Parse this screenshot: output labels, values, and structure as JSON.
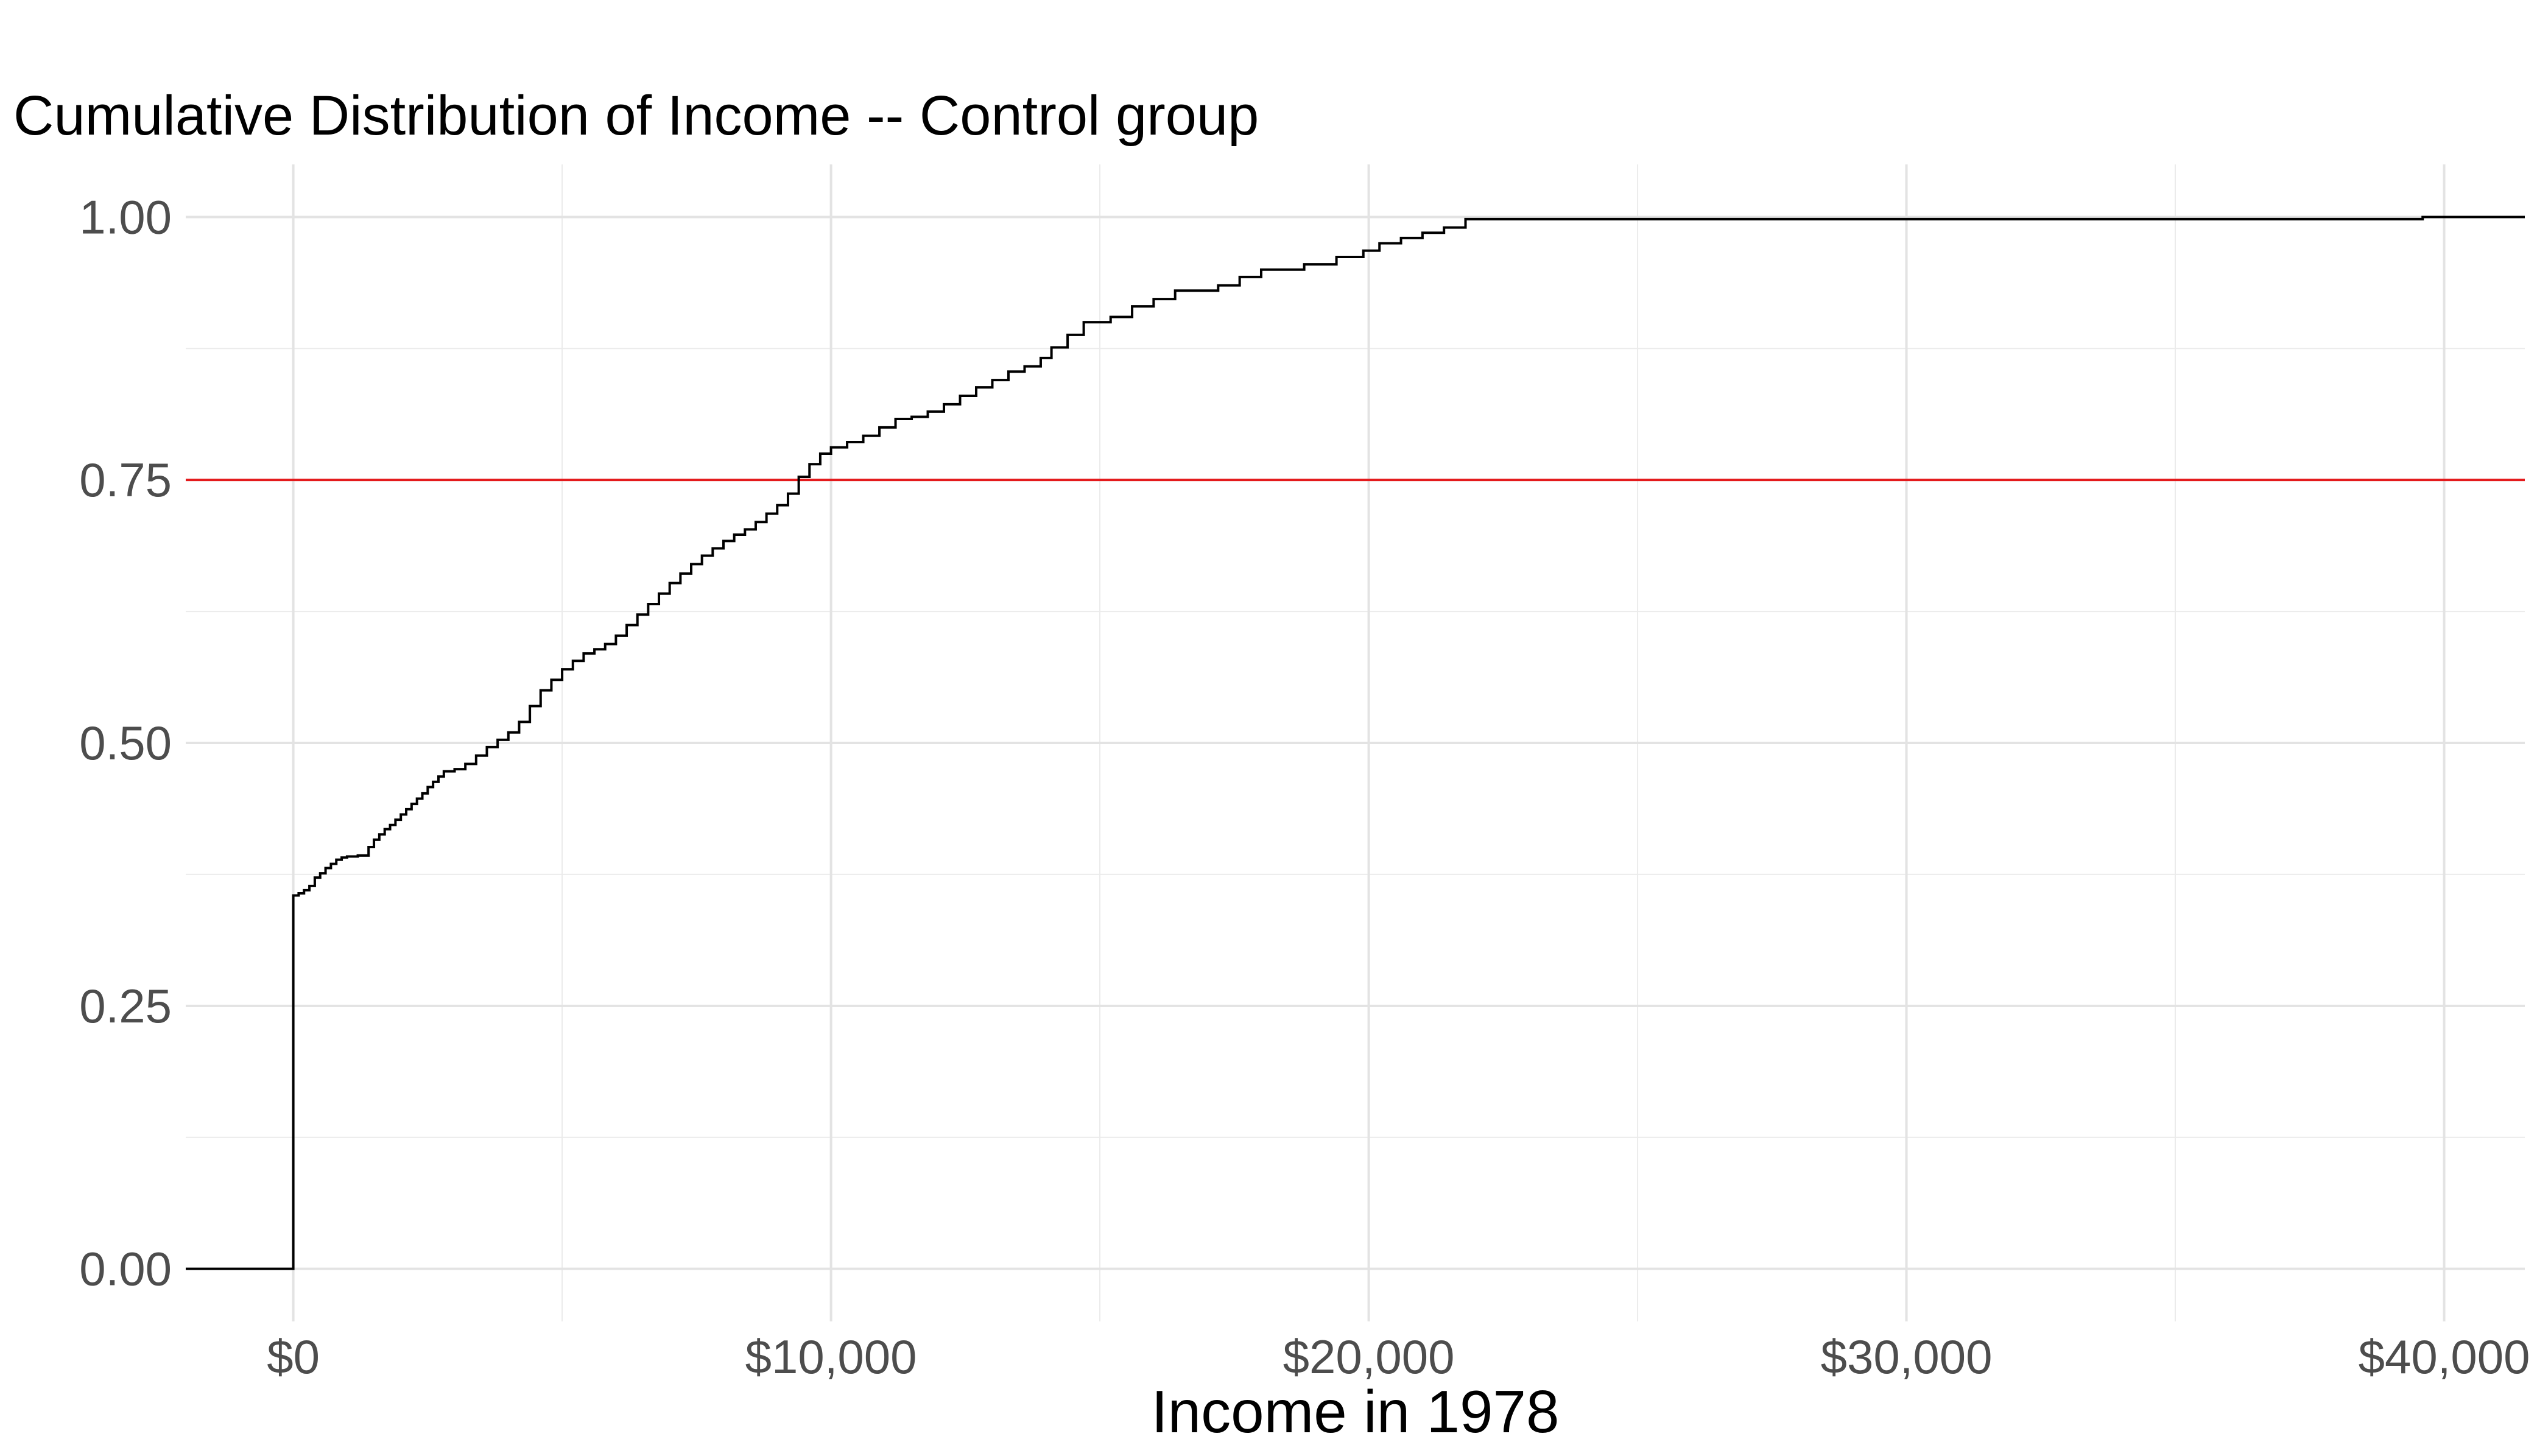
{
  "chart_data": {
    "type": "line",
    "step": true,
    "title": "Cumulative Distribution of Income -- Control group",
    "xlabel": "Income in 1978",
    "ylabel": "",
    "xlim": [
      -2000,
      41500
    ],
    "ylim": [
      -0.05,
      1.05
    ],
    "x_ticks": [
      {
        "value": 0,
        "label": "$0"
      },
      {
        "value": 10000,
        "label": "$10,000"
      },
      {
        "value": 20000,
        "label": "$20,000"
      },
      {
        "value": 30000,
        "label": "$30,000"
      },
      {
        "value": 40000,
        "label": "$40,000"
      }
    ],
    "y_ticks": [
      {
        "value": 0,
        "label": "0.00"
      },
      {
        "value": 0.25,
        "label": "0.25"
      },
      {
        "value": 0.5,
        "label": "0.50"
      },
      {
        "value": 0.75,
        "label": "0.75"
      },
      {
        "value": 1,
        "label": "1.00"
      }
    ],
    "grid": true,
    "reference_line": {
      "y": 0.75,
      "color": "#e41a1c"
    },
    "series": [
      {
        "color": "#000000",
        "points": [
          [
            -2000,
            0
          ],
          [
            0,
            0
          ],
          [
            0,
            0.355
          ],
          [
            100,
            0.357
          ],
          [
            200,
            0.36
          ],
          [
            300,
            0.364
          ],
          [
            400,
            0.372
          ],
          [
            500,
            0.376
          ],
          [
            600,
            0.381
          ],
          [
            700,
            0.385
          ],
          [
            800,
            0.389
          ],
          [
            900,
            0.391
          ],
          [
            1000,
            0.392
          ],
          [
            1200,
            0.393
          ],
          [
            1400,
            0.401
          ],
          [
            1500,
            0.408
          ],
          [
            1600,
            0.413
          ],
          [
            1700,
            0.418
          ],
          [
            1800,
            0.422
          ],
          [
            1900,
            0.427
          ],
          [
            2000,
            0.432
          ],
          [
            2100,
            0.437
          ],
          [
            2200,
            0.442
          ],
          [
            2300,
            0.447
          ],
          [
            2400,
            0.452
          ],
          [
            2500,
            0.458
          ],
          [
            2600,
            0.463
          ],
          [
            2700,
            0.468
          ],
          [
            2800,
            0.473
          ],
          [
            3000,
            0.475
          ],
          [
            3200,
            0.48
          ],
          [
            3400,
            0.488
          ],
          [
            3600,
            0.496
          ],
          [
            3800,
            0.503
          ],
          [
            4000,
            0.51
          ],
          [
            4200,
            0.52
          ],
          [
            4400,
            0.535
          ],
          [
            4600,
            0.55
          ],
          [
            4800,
            0.56
          ],
          [
            5000,
            0.57
          ],
          [
            5200,
            0.578
          ],
          [
            5400,
            0.585
          ],
          [
            5600,
            0.589
          ],
          [
            5800,
            0.594
          ],
          [
            6000,
            0.602
          ],
          [
            6200,
            0.612
          ],
          [
            6400,
            0.622
          ],
          [
            6600,
            0.632
          ],
          [
            6800,
            0.642
          ],
          [
            7000,
            0.652
          ],
          [
            7200,
            0.661
          ],
          [
            7400,
            0.67
          ],
          [
            7600,
            0.678
          ],
          [
            7800,
            0.685
          ],
          [
            8000,
            0.692
          ],
          [
            8200,
            0.698
          ],
          [
            8400,
            0.703
          ],
          [
            8600,
            0.71
          ],
          [
            8800,
            0.718
          ],
          [
            9000,
            0.726
          ],
          [
            9200,
            0.737
          ],
          [
            9400,
            0.753
          ],
          [
            9600,
            0.765
          ],
          [
            9800,
            0.775
          ],
          [
            10000,
            0.781
          ],
          [
            10300,
            0.786
          ],
          [
            10600,
            0.792
          ],
          [
            10900,
            0.8
          ],
          [
            11200,
            0.808
          ],
          [
            11500,
            0.81
          ],
          [
            11800,
            0.815
          ],
          [
            12100,
            0.822
          ],
          [
            12400,
            0.83
          ],
          [
            12700,
            0.838
          ],
          [
            13000,
            0.845
          ],
          [
            13300,
            0.853
          ],
          [
            13600,
            0.858
          ],
          [
            13900,
            0.866
          ],
          [
            14100,
            0.876
          ],
          [
            14400,
            0.888
          ],
          [
            14700,
            0.9
          ],
          [
            15200,
            0.905
          ],
          [
            15600,
            0.915
          ],
          [
            16000,
            0.922
          ],
          [
            16400,
            0.93
          ],
          [
            17200,
            0.935
          ],
          [
            17600,
            0.943
          ],
          [
            18000,
            0.95
          ],
          [
            18800,
            0.955
          ],
          [
            19400,
            0.962
          ],
          [
            19900,
            0.968
          ],
          [
            20200,
            0.975
          ],
          [
            20600,
            0.98
          ],
          [
            21000,
            0.985
          ],
          [
            21400,
            0.99
          ],
          [
            21800,
            0.998
          ],
          [
            39500,
            0.998
          ],
          [
            39600,
            1.0
          ],
          [
            41500,
            1.0
          ]
        ]
      }
    ]
  }
}
